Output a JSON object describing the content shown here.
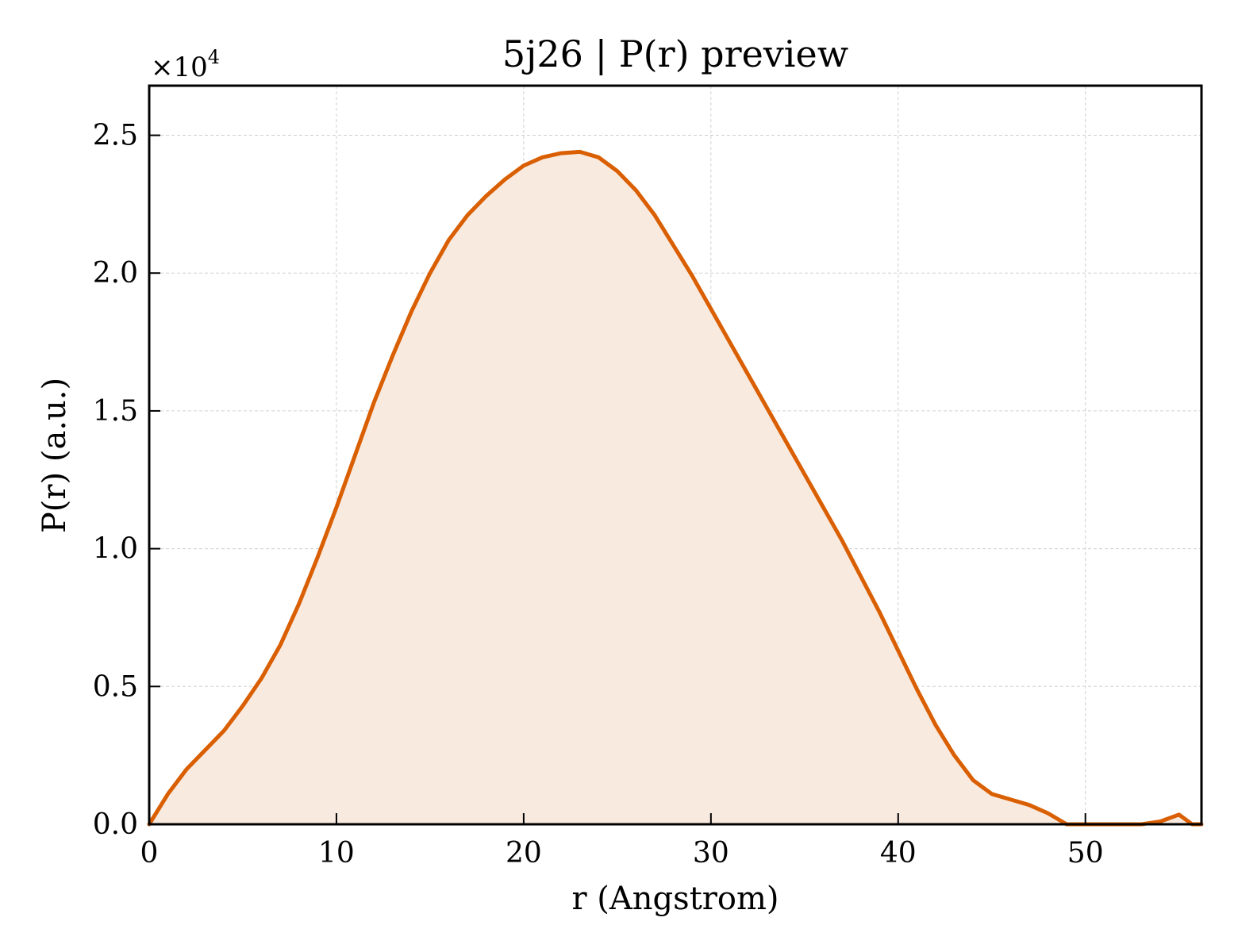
{
  "chart_data": {
    "type": "area",
    "title": "5j26 | P(r) preview",
    "xlabel": "r (Angstrom)",
    "ylabel": "P(r) (a.u.)",
    "y_multiplier": {
      "base": "×10",
      "exponent": "4"
    },
    "xlim": [
      0,
      56.2
    ],
    "ylim": [
      0,
      26800
    ],
    "grid": true,
    "x_ticks": [
      {
        "value": 0,
        "label": "0"
      },
      {
        "value": 10,
        "label": "10"
      },
      {
        "value": 20,
        "label": "20"
      },
      {
        "value": 30,
        "label": "30"
      },
      {
        "value": 40,
        "label": "40"
      },
      {
        "value": 50,
        "label": "50"
      }
    ],
    "y_ticks": [
      {
        "value": 0,
        "label": "0.0"
      },
      {
        "value": 5000,
        "label": "0.5"
      },
      {
        "value": 10000,
        "label": "1.0"
      },
      {
        "value": 15000,
        "label": "1.5"
      },
      {
        "value": 20000,
        "label": "2.0"
      },
      {
        "value": 25000,
        "label": "2.5"
      }
    ],
    "series": [
      {
        "color": "#d95f02",
        "fill_color": "#f9eae0",
        "x": [
          0,
          1,
          2,
          3,
          4,
          5,
          6,
          7,
          8,
          9,
          10,
          11,
          12,
          13,
          14,
          15,
          16,
          17,
          18,
          19,
          20,
          21,
          22,
          23,
          24,
          25,
          26,
          27,
          28,
          29,
          30,
          31,
          32,
          33,
          34,
          35,
          36,
          37,
          38,
          39,
          40,
          41,
          42,
          43,
          44,
          45,
          46,
          47,
          48,
          49,
          50,
          51,
          52,
          53,
          54,
          55,
          55.7,
          56.2
        ],
        "y": [
          0,
          1100,
          2000,
          2700,
          3400,
          4300,
          5300,
          6500,
          8000,
          9700,
          11500,
          13400,
          15300,
          17000,
          18600,
          20000,
          21200,
          22100,
          22800,
          23400,
          23900,
          24200,
          24350,
          24400,
          24200,
          23700,
          23000,
          22100,
          21000,
          19900,
          18700,
          17500,
          16300,
          15100,
          13900,
          12700,
          11500,
          10300,
          9000,
          7700,
          6300,
          4900,
          3600,
          2500,
          1600,
          1100,
          900,
          700,
          400,
          0,
          -100,
          0,
          0,
          0,
          100,
          350,
          0,
          0
        ]
      }
    ]
  }
}
